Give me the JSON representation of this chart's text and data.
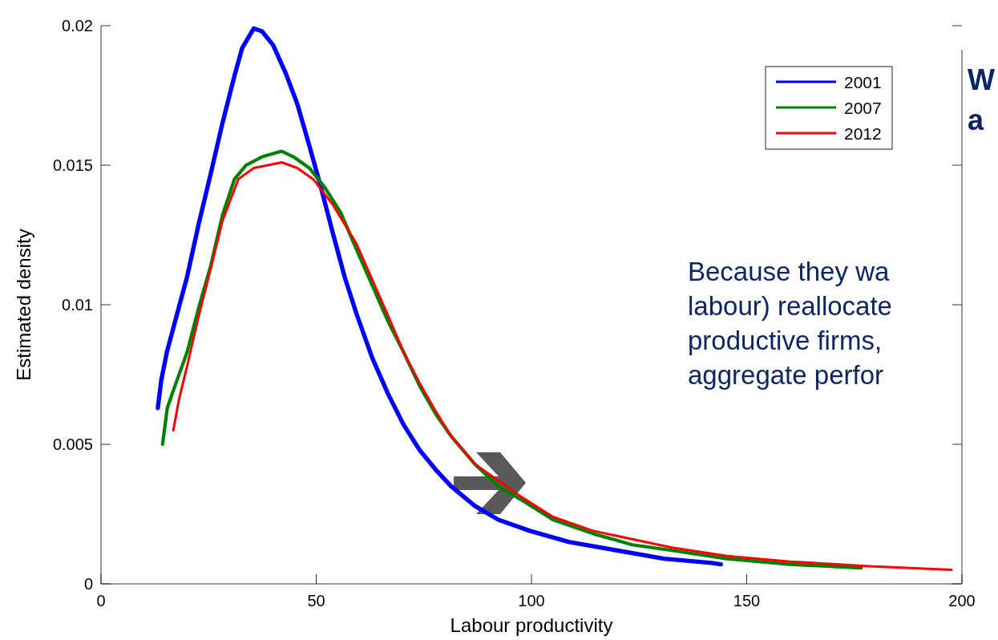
{
  "chart_data": {
    "type": "line",
    "xlabel": "Labour productivity",
    "ylabel": "Estimated density",
    "xlim": [
      0,
      200
    ],
    "xticks": [
      0,
      50,
      100,
      150,
      200
    ],
    "ylim": [
      0,
      0.02
    ],
    "yticks": [
      0,
      0.005,
      0.01,
      0.015,
      0.02
    ],
    "grid": false,
    "legend": "top right",
    "line_style": "solid",
    "marker": "none",
    "annotations": [
      "W",
      "a",
      "Because they wa",
      "labour) reallocate",
      "productive firms,",
      "aggregate perfor"
    ],
    "series": [
      {
        "name": "2001",
        "color": "#0000ff",
        "x": [
          13.2,
          14,
          15.3,
          17.2,
          20,
          22.7,
          25.5,
          28.2,
          31,
          32.8,
          35.5,
          37.4,
          40,
          42.9,
          45.6,
          48.4,
          51.1,
          53.8,
          56.6,
          59.3,
          63,
          66.7,
          70.3,
          74,
          77.7,
          81.3,
          86.8,
          92.3,
          99.6,
          108.8,
          119.8,
          130.8,
          141.8,
          144
        ],
        "values": [
          0.0063,
          0.0073,
          0.0083,
          0.0094,
          0.011,
          0.0129,
          0.0147,
          0.0165,
          0.0182,
          0.0192,
          0.0199,
          0.0198,
          0.0193,
          0.0183,
          0.0172,
          0.0157,
          0.0142,
          0.0126,
          0.011,
          0.0097,
          0.0081,
          0.0068,
          0.0057,
          0.0048,
          0.0041,
          0.0035,
          0.0028,
          0.0023,
          0.0019,
          0.0015,
          0.0012,
          0.0009,
          0.00075,
          0.0007
        ]
      },
      {
        "name": "2007",
        "color": "#008000",
        "x": [
          14.3,
          15.4,
          17.2,
          20,
          22.7,
          25.5,
          28.2,
          31,
          33.7,
          37.4,
          42,
          44.7,
          48.4,
          52,
          55.7,
          59.3,
          63,
          66.7,
          70.3,
          74,
          77.7,
          81.3,
          86.8,
          92.3,
          97.8,
          105,
          114.3,
          123.4,
          132.6,
          145.4,
          160,
          176.6
        ],
        "values": [
          0.005,
          0.0063,
          0.0071,
          0.0083,
          0.0099,
          0.0114,
          0.0132,
          0.0145,
          0.015,
          0.0153,
          0.0155,
          0.0153,
          0.0149,
          0.0142,
          0.0133,
          0.012,
          0.0107,
          0.0094,
          0.0083,
          0.0071,
          0.0061,
          0.0053,
          0.0043,
          0.0035,
          0.003,
          0.0023,
          0.0018,
          0.0014,
          0.0012,
          0.0009,
          0.0007,
          0.00057
        ]
      },
      {
        "name": "2012",
        "color": "#ff0000",
        "x": [
          16.8,
          18.1,
          20,
          22.7,
          25.5,
          28.2,
          31.9,
          35.5,
          42,
          45.6,
          49.3,
          53.8,
          59.3,
          63,
          66.7,
          70.3,
          74,
          77.7,
          81.3,
          86.8,
          92.3,
          97.8,
          105,
          114.3,
          123.4,
          132.6,
          145.4,
          160,
          178.4,
          197.6
        ],
        "values": [
          0.0055,
          0.0066,
          0.0078,
          0.0096,
          0.0113,
          0.013,
          0.0145,
          0.0149,
          0.0151,
          0.0149,
          0.0145,
          0.0136,
          0.0122,
          0.0109,
          0.0096,
          0.0083,
          0.0072,
          0.0062,
          0.0053,
          0.0043,
          0.0037,
          0.0031,
          0.0024,
          0.0019,
          0.0016,
          0.0013,
          0.001,
          0.0008,
          0.00063,
          0.0005
        ]
      }
    ]
  }
}
